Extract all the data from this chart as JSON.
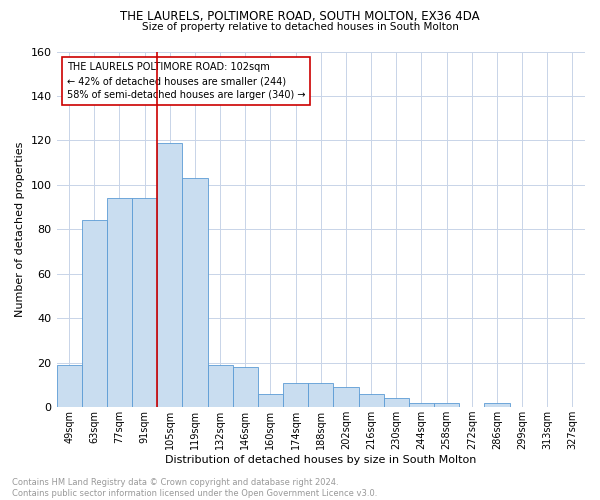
{
  "title1": "THE LAURELS, POLTIMORE ROAD, SOUTH MOLTON, EX36 4DA",
  "title2": "Size of property relative to detached houses in South Molton",
  "xlabel": "Distribution of detached houses by size in South Molton",
  "ylabel": "Number of detached properties",
  "bar_labels": [
    "49sqm",
    "63sqm",
    "77sqm",
    "91sqm",
    "105sqm",
    "119sqm",
    "132sqm",
    "146sqm",
    "160sqm",
    "174sqm",
    "188sqm",
    "202sqm",
    "216sqm",
    "230sqm",
    "244sqm",
    "258sqm",
    "272sqm",
    "286sqm",
    "299sqm",
    "313sqm",
    "327sqm"
  ],
  "bar_values": [
    19,
    84,
    94,
    94,
    119,
    103,
    19,
    18,
    6,
    11,
    11,
    9,
    6,
    4,
    2,
    2,
    0,
    2,
    0,
    0,
    0
  ],
  "bar_color": "#c9ddf0",
  "bar_edgecolor": "#5b9bd5",
  "red_line_index": 4,
  "annotation_text": "THE LAURELS POLTIMORE ROAD: 102sqm\n← 42% of detached houses are smaller (244)\n58% of semi-detached houses are larger (340) →",
  "annotation_box_edgecolor": "#cc0000",
  "red_line_color": "#cc0000",
  "footnote": "Contains HM Land Registry data © Crown copyright and database right 2024.\nContains public sector information licensed under the Open Government Licence v3.0.",
  "ylim": [
    0,
    160
  ],
  "yticks": [
    0,
    20,
    40,
    60,
    80,
    100,
    120,
    140,
    160
  ],
  "background_color": "#ffffff",
  "grid_color": "#c8d4e8"
}
